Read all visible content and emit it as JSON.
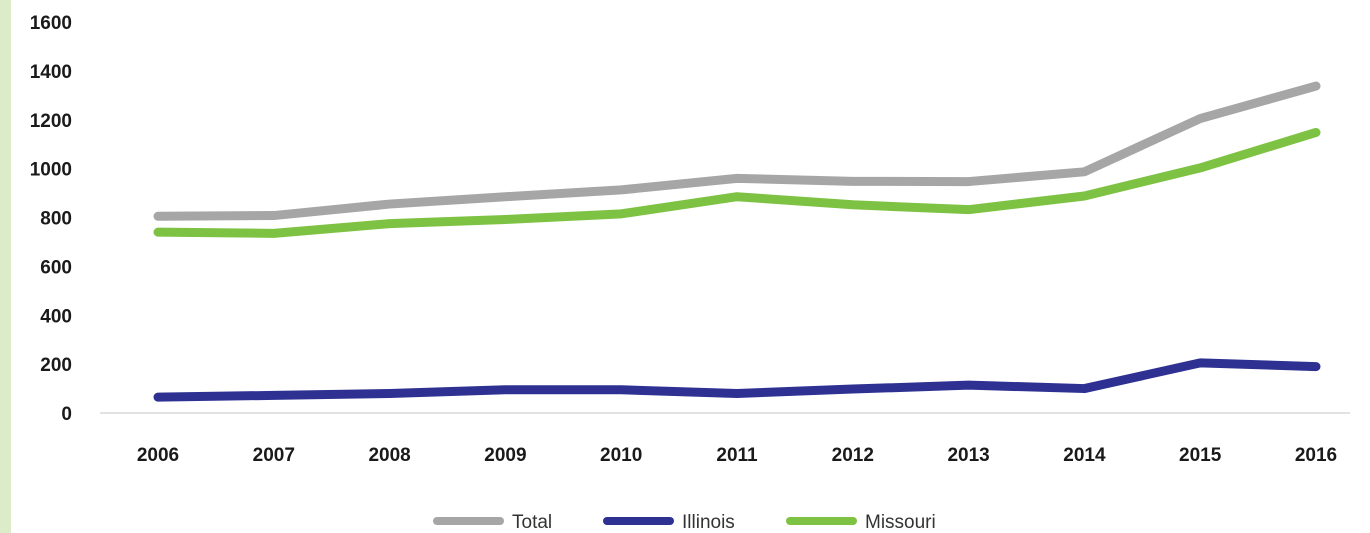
{
  "chart_data": {
    "type": "line",
    "title": "",
    "xlabel": "",
    "ylabel": "",
    "categories": [
      "2006",
      "2007",
      "2008",
      "2009",
      "2010",
      "2011",
      "2012",
      "2013",
      "2014",
      "2015",
      "2016"
    ],
    "ylim": [
      0,
      1600
    ],
    "yticks": [
      0,
      200,
      400,
      600,
      800,
      1000,
      1200,
      1400,
      1600
    ],
    "grid": false,
    "legend_position": "bottom",
    "series": [
      {
        "name": "Total",
        "color": "#a6a6a6",
        "values": [
          805,
          808,
          855,
          885,
          913,
          960,
          948,
          947,
          987,
          1205,
          1338
        ]
      },
      {
        "name": "Illinois",
        "color": "#2e3192",
        "values": [
          65,
          72,
          80,
          95,
          95,
          80,
          98,
          114,
          100,
          205,
          190
        ]
      },
      {
        "name": "Missouri",
        "color": "#7dc242",
        "values": [
          740,
          735,
          775,
          792,
          815,
          885,
          852,
          832,
          888,
          1003,
          1148
        ]
      }
    ]
  }
}
